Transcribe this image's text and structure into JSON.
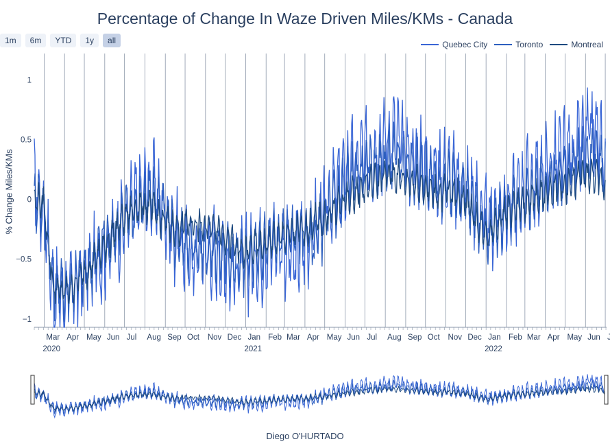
{
  "title": "Percentage of Change In Waze Driven Miles/KMs - Canada",
  "range_buttons": [
    "1m",
    "6m",
    "YTD",
    "1y",
    "all"
  ],
  "active_range": "all",
  "credit": "Diego O'HURTADO",
  "colors": {
    "quebec": "#3a66d6",
    "toronto": "#2d5fbf",
    "montreal": "#1e4a80",
    "grid": "#8a96a8",
    "axis": "#2a3f5f",
    "button_bg": "#eef2f8",
    "button_active": "#c5d1e6"
  },
  "chart_data": {
    "type": "line",
    "title": "Percentage of Change In Waze Driven Miles/KMs - Canada",
    "xlabel": "",
    "ylabel": "% Change Miles/KMs",
    "ylim": [
      -1.07,
      1.22
    ],
    "xlim": [
      "2020-02-15",
      "2022-07-03"
    ],
    "y_ticks": [
      -1,
      -0.5,
      0,
      0.5,
      1
    ],
    "y_tick_labels": [
      "−1",
      "−0.5",
      "0",
      "0.5",
      "1"
    ],
    "x_ticks": [
      {
        "date": "2020-03-01",
        "label": "Mar",
        "year": "2020"
      },
      {
        "date": "2020-04-01",
        "label": "Apr"
      },
      {
        "date": "2020-05-01",
        "label": "May"
      },
      {
        "date": "2020-06-01",
        "label": "Jun"
      },
      {
        "date": "2020-07-01",
        "label": "Jul"
      },
      {
        "date": "2020-08-01",
        "label": "Aug"
      },
      {
        "date": "2020-09-01",
        "label": "Sep"
      },
      {
        "date": "2020-10-01",
        "label": "Oct"
      },
      {
        "date": "2020-11-01",
        "label": "Nov"
      },
      {
        "date": "2020-12-01",
        "label": "Dec"
      },
      {
        "date": "2021-01-01",
        "label": "Jan",
        "year": "2021"
      },
      {
        "date": "2021-02-01",
        "label": "Feb"
      },
      {
        "date": "2021-03-01",
        "label": "Mar"
      },
      {
        "date": "2021-04-01",
        "label": "Apr"
      },
      {
        "date": "2021-05-01",
        "label": "May"
      },
      {
        "date": "2021-06-01",
        "label": "Jun"
      },
      {
        "date": "2021-07-01",
        "label": "Jul"
      },
      {
        "date": "2021-08-01",
        "label": "Aug"
      },
      {
        "date": "2021-09-01",
        "label": "Sep"
      },
      {
        "date": "2021-10-01",
        "label": "Oct"
      },
      {
        "date": "2021-11-01",
        "label": "Nov"
      },
      {
        "date": "2021-12-01",
        "label": "Dec"
      },
      {
        "date": "2022-01-01",
        "label": "Jan",
        "year": "2022"
      },
      {
        "date": "2022-02-01",
        "label": "Feb"
      },
      {
        "date": "2022-03-01",
        "label": "Mar"
      },
      {
        "date": "2022-04-01",
        "label": "Apr"
      },
      {
        "date": "2022-05-01",
        "label": "May"
      },
      {
        "date": "2022-06-01",
        "label": "Jun"
      },
      {
        "date": "2022-07-01",
        "label": "Jul"
      }
    ],
    "legend_position": "top-right",
    "vertical_grid": true,
    "series": [
      {
        "name": "Quebec City",
        "color": "#3a66d6",
        "x": [
          "2020-02-15",
          "2020-03-01",
          "2020-03-15",
          "2020-04-01",
          "2020-04-15",
          "2020-05-01",
          "2020-05-15",
          "2020-06-01",
          "2020-06-15",
          "2020-07-01",
          "2020-07-15",
          "2020-08-01",
          "2020-08-15",
          "2020-09-01",
          "2020-09-15",
          "2020-10-01",
          "2020-10-15",
          "2020-11-01",
          "2020-11-15",
          "2020-12-01",
          "2020-12-15",
          "2021-01-01",
          "2021-01-15",
          "2021-02-01",
          "2021-02-15",
          "2021-03-01",
          "2021-03-15",
          "2021-04-01",
          "2021-04-15",
          "2021-05-01",
          "2021-05-15",
          "2021-06-01",
          "2021-06-15",
          "2021-07-01",
          "2021-07-15",
          "2021-08-01",
          "2021-08-15",
          "2021-09-01",
          "2021-09-15",
          "2021-10-01",
          "2021-10-15",
          "2021-11-01",
          "2021-11-15",
          "2021-12-01",
          "2021-12-15",
          "2022-01-01",
          "2022-01-15",
          "2022-02-01",
          "2022-02-15",
          "2022-03-01",
          "2022-03-15",
          "2022-04-01",
          "2022-04-15",
          "2022-05-01",
          "2022-05-15",
          "2022-06-01",
          "2022-06-15",
          "2022-07-01"
        ],
        "y": [
          0.1,
          -0.1,
          -0.8,
          -0.8,
          -0.75,
          -0.65,
          -0.55,
          -0.45,
          -0.3,
          -0.2,
          -0.05,
          0.05,
          0.1,
          -0.1,
          -0.3,
          -0.45,
          -0.5,
          -0.4,
          -0.45,
          -0.5,
          -0.6,
          -0.55,
          -0.5,
          -0.45,
          -0.35,
          -0.4,
          -0.5,
          -0.35,
          -0.25,
          -0.1,
          0.05,
          0.2,
          0.3,
          0.35,
          0.4,
          0.5,
          0.55,
          0.4,
          0.35,
          0.3,
          0.25,
          0.2,
          0.15,
          0.1,
          0.0,
          -0.2,
          -0.15,
          -0.05,
          0.0,
          0.1,
          0.15,
          0.25,
          0.3,
          0.35,
          0.4,
          0.5,
          0.6,
          0.3
        ]
      },
      {
        "name": "Toronto",
        "color": "#2d5fbf",
        "x": [
          "2020-02-15",
          "2020-03-01",
          "2020-03-15",
          "2020-04-01",
          "2020-04-15",
          "2020-05-01",
          "2020-05-15",
          "2020-06-01",
          "2020-06-15",
          "2020-07-01",
          "2020-07-15",
          "2020-08-01",
          "2020-08-15",
          "2020-09-01",
          "2020-09-15",
          "2020-10-01",
          "2020-10-15",
          "2020-11-01",
          "2020-11-15",
          "2020-12-01",
          "2020-12-15",
          "2021-01-01",
          "2021-01-15",
          "2021-02-01",
          "2021-02-15",
          "2021-03-01",
          "2021-03-15",
          "2021-04-01",
          "2021-04-15",
          "2021-05-01",
          "2021-05-15",
          "2021-06-01",
          "2021-06-15",
          "2021-07-01",
          "2021-07-15",
          "2021-08-01",
          "2021-08-15",
          "2021-09-01",
          "2021-09-15",
          "2021-10-01",
          "2021-10-15",
          "2021-11-01",
          "2021-11-15",
          "2021-12-01",
          "2021-12-15",
          "2022-01-01",
          "2022-01-15",
          "2022-02-01",
          "2022-02-15",
          "2022-03-01",
          "2022-03-15",
          "2022-04-01",
          "2022-04-15",
          "2022-05-01",
          "2022-05-15",
          "2022-06-01",
          "2022-06-15",
          "2022-07-01"
        ],
        "y": [
          0.05,
          -0.1,
          -0.7,
          -0.75,
          -0.7,
          -0.6,
          -0.5,
          -0.35,
          -0.25,
          -0.15,
          -0.1,
          0.0,
          0.0,
          -0.15,
          -0.3,
          -0.35,
          -0.4,
          -0.4,
          -0.45,
          -0.45,
          -0.5,
          -0.5,
          -0.45,
          -0.4,
          -0.35,
          -0.3,
          -0.3,
          -0.25,
          -0.35,
          -0.2,
          -0.05,
          0.1,
          0.2,
          0.25,
          0.3,
          0.3,
          0.35,
          0.3,
          0.25,
          0.2,
          0.1,
          0.15,
          0.1,
          0.05,
          -0.1,
          -0.3,
          -0.2,
          -0.1,
          -0.05,
          0.0,
          0.05,
          0.1,
          0.15,
          0.2,
          0.3,
          0.35,
          0.4,
          0.2
        ]
      },
      {
        "name": "Montreal",
        "color": "#1e4a80",
        "x": [
          "2020-02-15",
          "2020-03-01",
          "2020-03-15",
          "2020-04-01",
          "2020-04-15",
          "2020-05-01",
          "2020-05-15",
          "2020-06-01",
          "2020-06-15",
          "2020-07-01",
          "2020-07-15",
          "2020-08-01",
          "2020-08-15",
          "2020-09-01",
          "2020-09-15",
          "2020-10-01",
          "2020-10-15",
          "2020-11-01",
          "2020-11-15",
          "2020-12-01",
          "2020-12-15",
          "2021-01-01",
          "2021-01-15",
          "2021-02-01",
          "2021-02-15",
          "2021-03-01",
          "2021-03-15",
          "2021-04-01",
          "2021-04-15",
          "2021-05-01",
          "2021-05-15",
          "2021-06-01",
          "2021-06-15",
          "2021-07-01",
          "2021-07-15",
          "2021-08-01",
          "2021-08-15",
          "2021-09-01",
          "2021-09-15",
          "2021-10-01",
          "2021-10-15",
          "2021-11-01",
          "2021-11-15",
          "2021-12-01",
          "2021-12-15",
          "2022-01-01",
          "2022-01-15",
          "2022-02-01",
          "2022-02-15",
          "2022-03-01",
          "2022-03-15",
          "2022-04-01",
          "2022-04-15",
          "2022-05-01",
          "2022-05-15",
          "2022-06-01",
          "2022-06-15",
          "2022-07-01"
        ],
        "y": [
          0.0,
          -0.05,
          -0.75,
          -0.78,
          -0.72,
          -0.62,
          -0.52,
          -0.4,
          -0.28,
          -0.15,
          -0.08,
          -0.05,
          -0.1,
          -0.2,
          -0.25,
          -0.2,
          -0.2,
          -0.25,
          -0.2,
          -0.3,
          -0.4,
          -0.45,
          -0.4,
          -0.38,
          -0.35,
          -0.3,
          -0.28,
          -0.25,
          -0.2,
          -0.15,
          -0.1,
          0.0,
          0.05,
          0.1,
          0.15,
          0.2,
          0.2,
          0.15,
          0.15,
          0.1,
          0.05,
          0.05,
          0.05,
          0.0,
          -0.15,
          -0.3,
          -0.2,
          -0.1,
          -0.05,
          -0.05,
          0.0,
          0.05,
          0.1,
          0.1,
          0.15,
          0.2,
          0.2,
          0.1
        ]
      }
    ]
  }
}
